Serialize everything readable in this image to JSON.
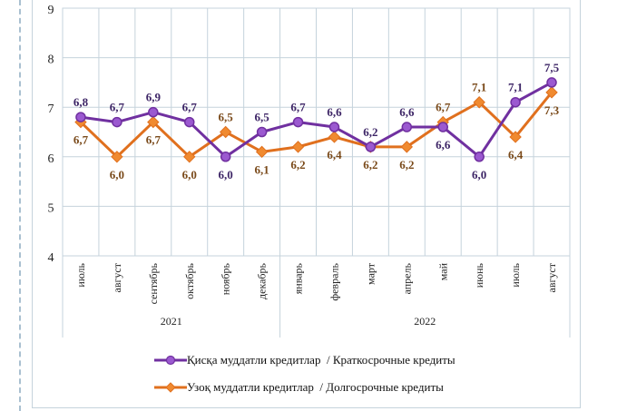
{
  "chart_data": {
    "type": "line",
    "title": "",
    "xlabel": "",
    "ylabel": "",
    "ylim": [
      4,
      9
    ],
    "yticks": [
      "4",
      "5",
      "6",
      "7",
      "8",
      "9"
    ],
    "grid": true,
    "categories": [
      "июль",
      "август",
      "сентябрь",
      "октябрь",
      "ноябрь",
      "декабрь",
      "январь",
      "февраль",
      "март",
      "апрель",
      "май",
      "июнь",
      "июль",
      "август"
    ],
    "year_groups": [
      {
        "label": "2021",
        "count": 6
      },
      {
        "label": "2022",
        "count": 8
      }
    ],
    "series": [
      {
        "name": "Қисқа муддатли кредитлар  / Краткосрочные кредиты",
        "color": "#7030a0",
        "marker_fill": "#9b59d0",
        "marker": "circle",
        "values": [
          6.8,
          6.7,
          6.9,
          6.7,
          6.0,
          6.5,
          6.7,
          6.6,
          6.2,
          6.6,
          6.6,
          6.0,
          7.1,
          7.5
        ],
        "labels": [
          "6,8",
          "6,7",
          "6,9",
          "6,7",
          "6,0",
          "6,5",
          "6,7",
          "6,6",
          "6,2",
          "6,6",
          "6,6",
          "6,0",
          "7,1",
          "7,5"
        ],
        "label_color": "#3d2566"
      },
      {
        "name": "Узоқ муддатли кредитлар  / Долгосрочные кредиты",
        "color": "#e0701e",
        "marker_fill": "#f08a30",
        "marker": "diamond",
        "values": [
          6.7,
          6.0,
          6.7,
          6.0,
          6.5,
          6.1,
          6.2,
          6.4,
          6.2,
          6.2,
          6.7,
          7.1,
          6.4,
          7.3
        ],
        "labels": [
          "6,7",
          "6,0",
          "6,7",
          "6,0",
          "6,5",
          "6,1",
          "6,2",
          "6,4",
          "6,2",
          "6,2",
          "6,7",
          "7,1",
          "6,4",
          "7,3"
        ],
        "label_color": "#7a4a1a"
      }
    ],
    "legend_position": "bottom"
  }
}
